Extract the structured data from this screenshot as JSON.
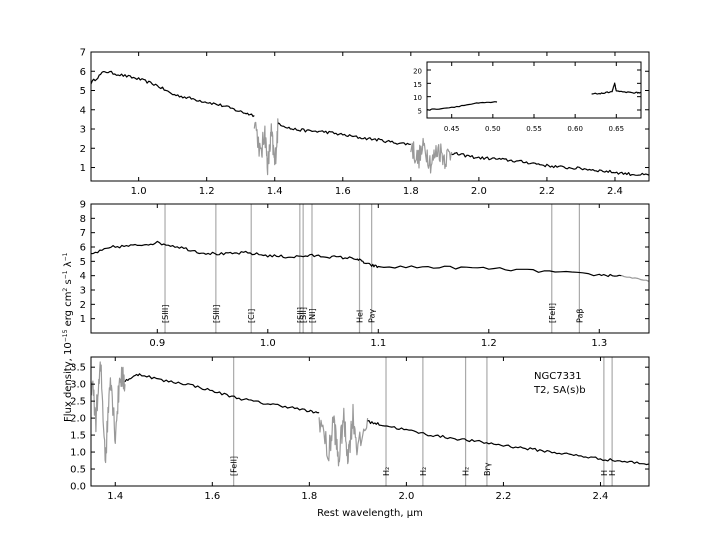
{
  "figure": {
    "ylabel": "Flux density, 10",
    "ylabel_exp": "−15",
    "ylabel_units": "erg  cm",
    "ylabel_units_exp1": "2",
    "ylabel_s": "s",
    "ylabel_s_exp": "−1",
    "ylabel_lambda": "λ",
    "ylabel_lambda_exp": "−1",
    "xlabel": "Rest wavelength, μm"
  },
  "chart_data": [
    {
      "type": "line",
      "panel": "top",
      "xlim": [
        0.86,
        2.5
      ],
      "ylim": [
        0.3,
        7
      ],
      "xticks": [
        1.0,
        1.2,
        1.4,
        1.6,
        1.8,
        2.0,
        2.2,
        2.4
      ],
      "yticks": [
        1,
        2,
        3,
        4,
        5,
        6,
        7
      ],
      "grid": false,
      "series": [
        {
          "color": "#000000",
          "points": [
            [
              0.86,
              5.4
            ],
            [
              0.9,
              6.0
            ],
            [
              0.95,
              5.8
            ],
            [
              1.0,
              5.6
            ],
            [
              1.05,
              5.3
            ],
            [
              1.1,
              4.8
            ],
            [
              1.15,
              4.6
            ],
            [
              1.2,
              4.4
            ],
            [
              1.25,
              4.2
            ],
            [
              1.3,
              3.9
            ],
            [
              1.34,
              3.7
            ]
          ]
        },
        {
          "color": "#999999",
          "points": [
            [
              1.34,
              3.6
            ],
            [
              1.36,
              1.5
            ],
            [
              1.37,
              3.0
            ],
            [
              1.38,
              1.0
            ],
            [
              1.39,
              2.8
            ],
            [
              1.4,
              1.2
            ],
            [
              1.41,
              3.2
            ]
          ]
        },
        {
          "color": "#000000",
          "points": [
            [
              1.41,
              3.3
            ],
            [
              1.45,
              3.0
            ],
            [
              1.5,
              2.9
            ],
            [
              1.55,
              2.85
            ],
            [
              1.6,
              2.7
            ],
            [
              1.65,
              2.55
            ],
            [
              1.7,
              2.45
            ],
            [
              1.75,
              2.3
            ],
            [
              1.8,
              2.2
            ]
          ]
        },
        {
          "color": "#999999",
          "points": [
            [
              1.8,
              2.2
            ],
            [
              1.82,
              1.4
            ],
            [
              1.84,
              2.1
            ],
            [
              1.86,
              1.2
            ],
            [
              1.88,
              2.0
            ],
            [
              1.9,
              1.5
            ],
            [
              1.92,
              1.8
            ]
          ]
        },
        {
          "color": "#000000",
          "points": [
            [
              1.92,
              1.75
            ],
            [
              1.95,
              1.65
            ],
            [
              2.0,
              1.5
            ],
            [
              2.05,
              1.45
            ],
            [
              2.1,
              1.35
            ],
            [
              2.15,
              1.25
            ],
            [
              2.2,
              1.1
            ],
            [
              2.25,
              1.0
            ],
            [
              2.3,
              0.95
            ],
            [
              2.35,
              0.85
            ],
            [
              2.4,
              0.75
            ],
            [
              2.45,
              0.65
            ],
            [
              2.5,
              0.6
            ]
          ]
        }
      ],
      "inset": {
        "xlim": [
          0.42,
          0.68
        ],
        "ylim": [
          2,
          23
        ],
        "xticks": [
          0.45,
          0.5,
          0.55,
          0.6,
          0.65
        ],
        "yticks": [
          5,
          10,
          15,
          20
        ],
        "series": [
          {
            "color": "#000000",
            "points": [
              [
                0.42,
                5.0
              ],
              [
                0.45,
                6.0
              ],
              [
                0.48,
                7.5
              ],
              [
                0.505,
                8.0
              ]
            ]
          },
          {
            "color": "#000000",
            "points": [
              [
                0.62,
                11.0
              ],
              [
                0.635,
                11.3
              ],
              [
                0.645,
                12.0
              ],
              [
                0.648,
                15.0
              ],
              [
                0.65,
                12.0
              ],
              [
                0.67,
                11.5
              ],
              [
                0.68,
                11.5
              ]
            ]
          }
        ]
      }
    },
    {
      "type": "line",
      "panel": "middle",
      "xlim": [
        0.84,
        1.345
      ],
      "ylim": [
        0,
        9
      ],
      "xticks": [
        0.9,
        1.0,
        1.1,
        1.2,
        1.3
      ],
      "yticks": [
        1,
        2,
        3,
        4,
        5,
        6,
        7,
        8,
        9
      ],
      "grid": false,
      "series": [
        {
          "color": "#000000",
          "points": [
            [
              0.84,
              5.5
            ],
            [
              0.86,
              6.0
            ],
            [
              0.88,
              6.1
            ],
            [
              0.9,
              6.3
            ],
            [
              0.92,
              6.0
            ],
            [
              0.94,
              5.6
            ],
            [
              0.96,
              5.5
            ],
            [
              0.98,
              5.6
            ],
            [
              1.0,
              5.4
            ],
            [
              1.02,
              5.3
            ],
            [
              1.04,
              5.4
            ],
            [
              1.06,
              5.3
            ],
            [
              1.08,
              5.2
            ],
            [
              1.09,
              4.8
            ],
            [
              1.1,
              4.6
            ],
            [
              1.15,
              4.6
            ],
            [
              1.2,
              4.5
            ],
            [
              1.25,
              4.3
            ],
            [
              1.3,
              4.05
            ],
            [
              1.32,
              4.0
            ]
          ]
        },
        {
          "color": "#999999",
          "points": [
            [
              1.32,
              4.0
            ],
            [
              1.345,
              3.6
            ]
          ]
        }
      ],
      "lines": [
        {
          "x": 0.907,
          "label": "[SIII]"
        },
        {
          "x": 0.953,
          "label": "[SIII]"
        },
        {
          "x": 0.985,
          "label": "[CI]"
        },
        {
          "x": 1.029,
          "label": "[SII]"
        },
        {
          "x": 1.032,
          "label": "[SII]"
        },
        {
          "x": 1.04,
          "label": "[NI]"
        },
        {
          "x": 1.083,
          "label": "HeI"
        },
        {
          "x": 1.094,
          "label": "Paγ"
        },
        {
          "x": 1.257,
          "label": "[FeII]"
        },
        {
          "x": 1.282,
          "label": "Paβ"
        }
      ]
    },
    {
      "type": "line",
      "panel": "bottom",
      "xlim": [
        1.35,
        2.5
      ],
      "ylim": [
        0,
        3.8
      ],
      "xticks": [
        1.4,
        1.6,
        1.8,
        2.0,
        2.2,
        2.4
      ],
      "yticks": [
        0.0,
        0.5,
        1.0,
        1.5,
        2.0,
        2.5,
        3.0,
        3.5
      ],
      "grid": false,
      "series": [
        {
          "color": "#999999",
          "points": [
            [
              1.35,
              3.2
            ],
            [
              1.36,
              2.0
            ],
            [
              1.37,
              3.5
            ],
            [
              1.38,
              0.8
            ],
            [
              1.39,
              3.4
            ],
            [
              1.4,
              1.5
            ],
            [
              1.41,
              3.3
            ],
            [
              1.42,
              3.0
            ]
          ]
        },
        {
          "color": "#000000",
          "points": [
            [
              1.42,
              3.1
            ],
            [
              1.45,
              3.3
            ],
            [
              1.5,
              3.1
            ],
            [
              1.55,
              3.0
            ],
            [
              1.6,
              2.8
            ],
            [
              1.65,
              2.6
            ],
            [
              1.7,
              2.45
            ],
            [
              1.75,
              2.35
            ],
            [
              1.8,
              2.2
            ],
            [
              1.82,
              2.15
            ]
          ]
        },
        {
          "color": "#999999",
          "points": [
            [
              1.82,
              2.1
            ],
            [
              1.84,
              0.9
            ],
            [
              1.85,
              2.0
            ],
            [
              1.86,
              0.7
            ],
            [
              1.87,
              2.0
            ],
            [
              1.88,
              0.9
            ],
            [
              1.89,
              2.1
            ],
            [
              1.9,
              1.0
            ],
            [
              1.92,
              2.0
            ]
          ]
        },
        {
          "color": "#000000",
          "points": [
            [
              1.92,
              1.9
            ],
            [
              1.95,
              1.8
            ],
            [
              2.0,
              1.65
            ],
            [
              2.05,
              1.5
            ],
            [
              2.1,
              1.4
            ],
            [
              2.15,
              1.3
            ],
            [
              2.2,
              1.2
            ],
            [
              2.25,
              1.1
            ],
            [
              2.3,
              1.0
            ],
            [
              2.35,
              0.9
            ],
            [
              2.4,
              0.8
            ],
            [
              2.45,
              0.72
            ],
            [
              2.5,
              0.65
            ]
          ]
        }
      ],
      "lines": [
        {
          "x": 1.644,
          "label": "[FeII]"
        },
        {
          "x": 1.958,
          "label": "H₂"
        },
        {
          "x": 2.034,
          "label": "H₂"
        },
        {
          "x": 2.122,
          "label": "H₂"
        },
        {
          "x": 2.166,
          "label": "Brγ"
        },
        {
          "x": 2.407,
          "label": "H"
        },
        {
          "x": 2.424,
          "label": "H"
        }
      ],
      "annotation": [
        "NGC7331",
        "T2,  SA(s)b"
      ]
    }
  ]
}
